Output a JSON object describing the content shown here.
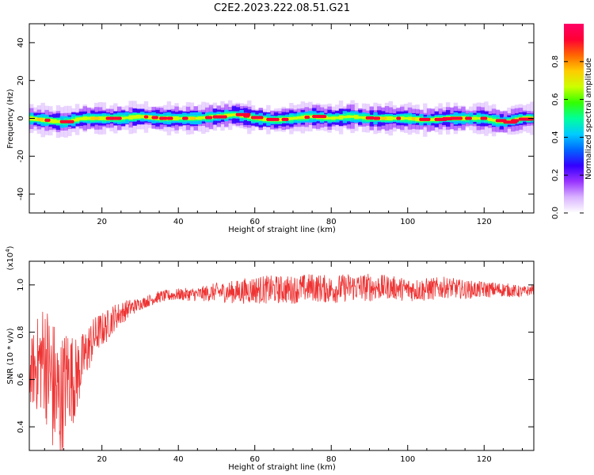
{
  "title": "C2E2.2023.222.08.51.G21",
  "chart_data": [
    {
      "type": "heatmap",
      "xlabel": "Height of straight line (km)",
      "ylabel": "Frequency (Hz)",
      "xlim": [
        1,
        133
      ],
      "ylim": [
        -50,
        50
      ],
      "xticks": [
        20,
        40,
        60,
        80,
        100,
        120
      ],
      "xtick_labels": [
        "20",
        "40",
        "60",
        "80",
        "100",
        "120"
      ],
      "yticks": [
        -40,
        -20,
        0,
        20,
        40
      ],
      "ytick_labels": [
        "-40",
        "-20",
        "0",
        "20",
        "40"
      ],
      "colorbar": {
        "label": "Normalized spectral amplitude",
        "range": [
          0,
          1
        ],
        "ticks": [
          0.0,
          0.2,
          0.4,
          0.6,
          0.8
        ],
        "tick_labels": [
          "0.0",
          "0.2",
          "0.4",
          "0.6",
          "0.8"
        ],
        "colormap": [
          "#ffffff",
          "#d9b3ff",
          "#9933ff",
          "#3300ff",
          "#0066ff",
          "#00ccff",
          "#00ff99",
          "#33ff00",
          "#ccff00",
          "#ffcc00",
          "#ff6600",
          "#ff0033",
          "#ff0066"
        ]
      },
      "ridge": {
        "x": [
          1,
          5,
          10,
          15,
          20,
          25,
          30,
          35,
          40,
          45,
          50,
          55,
          60,
          65,
          70,
          75,
          80,
          85,
          90,
          95,
          100,
          105,
          110,
          115,
          120,
          125,
          130,
          133
        ],
        "frequency": [
          0,
          -1,
          -2,
          0,
          0,
          0,
          1,
          0,
          0,
          0,
          1,
          2,
          0,
          -1,
          0,
          1,
          0,
          1,
          0,
          0,
          0,
          -1,
          0,
          0,
          0,
          -2,
          0,
          0
        ]
      }
    },
    {
      "type": "line",
      "xlabel": "Height of straight line (km)",
      "ylabel": "SNR (10 * v/v)",
      "multiplier": "(x10",
      "multiplier_exp": "4",
      "multiplier_close": ")",
      "xlim": [
        1,
        133
      ],
      "ylim": [
        0.3,
        1.1
      ],
      "xticks": [
        20,
        40,
        60,
        80,
        100,
        120
      ],
      "xtick_labels": [
        "20",
        "40",
        "60",
        "80",
        "100",
        "120"
      ],
      "yticks": [
        0.4,
        0.6,
        0.8,
        1.0
      ],
      "ytick_labels": [
        "0.4",
        "0.6",
        "0.8",
        "1.0"
      ],
      "series": [
        {
          "color": "#ee3333",
          "x": [
            1,
            3,
            5,
            7,
            9,
            11,
            13,
            15,
            17,
            19,
            21,
            23,
            25,
            27,
            30,
            35,
            40,
            45,
            50,
            55,
            60,
            65,
            70,
            75,
            80,
            85,
            90,
            95,
            100,
            105,
            110,
            115,
            120,
            125,
            130,
            133
          ],
          "y": [
            0.62,
            0.66,
            0.7,
            0.58,
            0.5,
            0.62,
            0.6,
            0.68,
            0.75,
            0.8,
            0.82,
            0.86,
            0.88,
            0.9,
            0.92,
            0.95,
            0.96,
            0.96,
            0.97,
            0.97,
            0.98,
            0.98,
            0.98,
            0.99,
            0.98,
            0.99,
            0.99,
            0.99,
            0.98,
            0.98,
            0.99,
            0.98,
            0.98,
            0.98,
            0.97,
            0.98
          ],
          "noise_amplitude": [
            0.12,
            0.2,
            0.25,
            0.3,
            0.28,
            0.22,
            0.18,
            0.12,
            0.1,
            0.08,
            0.07,
            0.06,
            0.05,
            0.04,
            0.025,
            0.025,
            0.025,
            0.03,
            0.04,
            0.05,
            0.06,
            0.06,
            0.06,
            0.06,
            0.06,
            0.06,
            0.06,
            0.05,
            0.05,
            0.05,
            0.045,
            0.04,
            0.035,
            0.03,
            0.025,
            0.02
          ]
        }
      ]
    }
  ]
}
